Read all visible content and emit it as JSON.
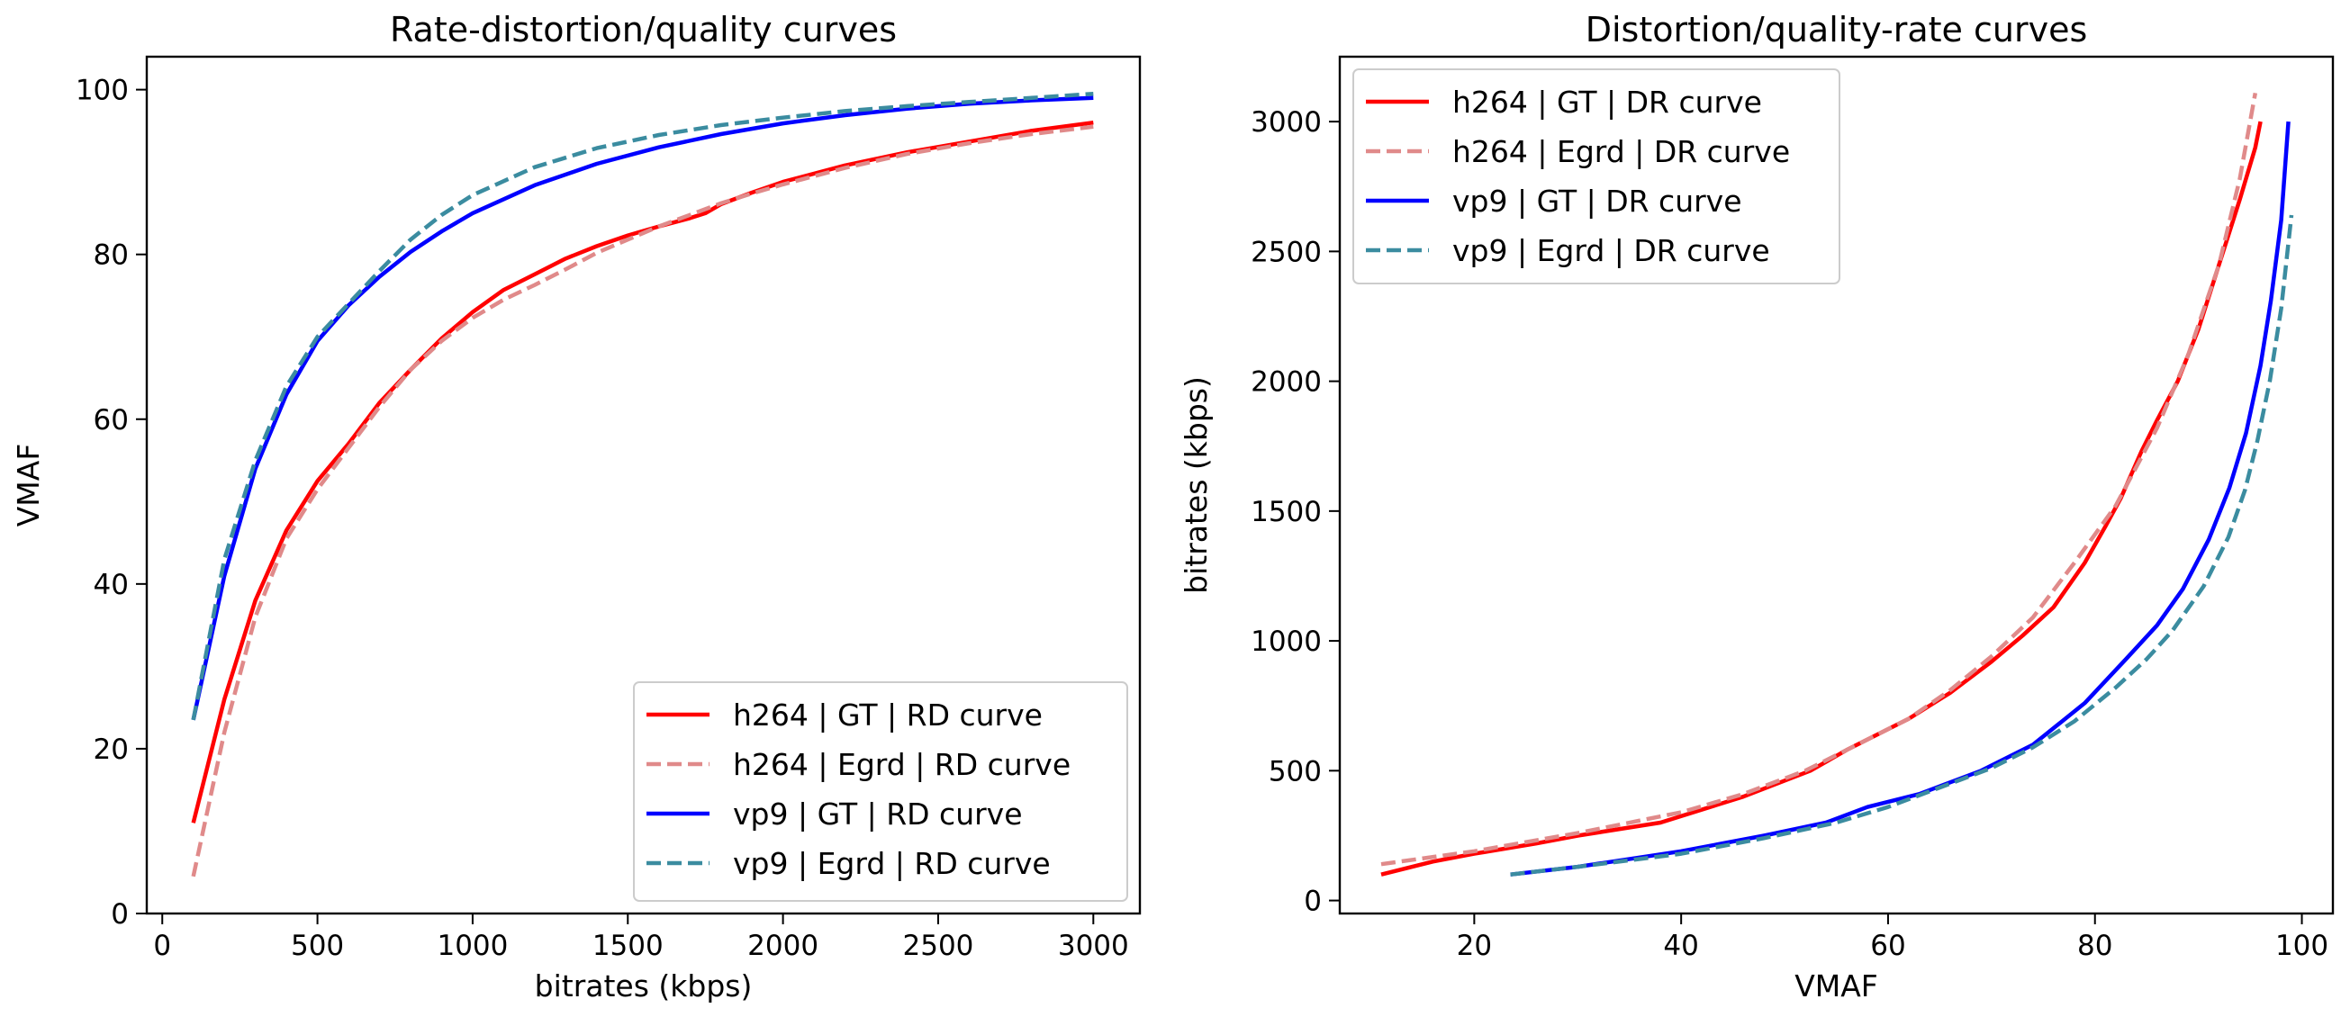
{
  "chart_data": [
    {
      "type": "line",
      "title": "Rate-distortion/quality curves",
      "xlabel": "bitrates (kbps)",
      "ylabel": "VMAF",
      "xlim": [
        -50,
        3150
      ],
      "ylim": [
        0,
        104
      ],
      "xticks": [
        0,
        500,
        1000,
        1500,
        2000,
        2500,
        3000
      ],
      "yticks": [
        0,
        20,
        40,
        60,
        80,
        100
      ],
      "grid": false,
      "legend_position": "lower-right",
      "series": [
        {
          "name": "h264 | GT | RD curve",
          "color": "#ff0000",
          "dash": "solid",
          "x": [
            100,
            200,
            300,
            400,
            500,
            600,
            700,
            800,
            900,
            1000,
            1100,
            1200,
            1300,
            1400,
            1500,
            1600,
            1700,
            1750,
            1800,
            1900,
            2000,
            2200,
            2400,
            2600,
            2800,
            3000
          ],
          "y": [
            11,
            26,
            38,
            46.5,
            52.5,
            57,
            62,
            66,
            69.8,
            73,
            75.7,
            77.6,
            79.5,
            81,
            82.3,
            83.4,
            84.4,
            85,
            86.1,
            87.5,
            88.8,
            90.8,
            92.4,
            93.7,
            95,
            96
          ]
        },
        {
          "name": "h264 | Egrd | RD curve",
          "color": "#e08a8a",
          "dash": "dashed",
          "x": [
            100,
            200,
            300,
            400,
            500,
            600,
            700,
            800,
            900,
            1000,
            1100,
            1200,
            1300,
            1400,
            1500,
            1600,
            1700,
            1800,
            1900,
            2000,
            2200,
            2400,
            2600,
            2800,
            3000
          ],
          "y": [
            4.5,
            22,
            36,
            45.5,
            51.5,
            56.5,
            61.5,
            66,
            69.5,
            72.3,
            74.5,
            76.3,
            78.2,
            80.2,
            81.8,
            83.4,
            84.8,
            86.2,
            87.4,
            88.5,
            90.5,
            92.2,
            93.5,
            94.6,
            95.5
          ]
        },
        {
          "name": "vp9 | GT | RD curve",
          "color": "#0000ff",
          "dash": "solid",
          "x": [
            100,
            200,
            300,
            400,
            500,
            600,
            700,
            800,
            900,
            1000,
            1200,
            1400,
            1600,
            1800,
            2000,
            2200,
            2400,
            2600,
            2800,
            3000
          ],
          "y": [
            23.5,
            41,
            54,
            63,
            69.5,
            73.8,
            77.3,
            80.3,
            82.8,
            85,
            88.4,
            91,
            93,
            94.6,
            95.9,
            96.9,
            97.7,
            98.3,
            98.7,
            99
          ]
        },
        {
          "name": "vp9 | Egrd | RD curve",
          "color": "#3b8ca0",
          "dash": "dashed",
          "x": [
            100,
            200,
            300,
            400,
            500,
            600,
            700,
            800,
            900,
            1000,
            1200,
            1400,
            1600,
            1800,
            2000,
            2200,
            2400,
            2600,
            2800,
            3000
          ],
          "y": [
            23.5,
            43,
            55,
            64,
            70,
            74,
            78,
            81.8,
            84.8,
            87.2,
            90.6,
            92.9,
            94.5,
            95.7,
            96.6,
            97.4,
            98,
            98.5,
            99,
            99.5
          ]
        }
      ]
    },
    {
      "type": "line",
      "title": "Distortion/quality-rate curves",
      "xlabel": "VMAF",
      "ylabel": "bitrates (kbps)",
      "xlim": [
        7,
        103
      ],
      "ylim": [
        -50,
        3250
      ],
      "xticks": [
        20,
        40,
        60,
        80,
        100
      ],
      "yticks": [
        0,
        500,
        1000,
        1500,
        2000,
        2500,
        3000
      ],
      "grid": false,
      "legend_position": "upper-left",
      "series": [
        {
          "name": "h264 | GT | DR curve",
          "color": "#ff0000",
          "dash": "solid",
          "x": [
            11,
            16,
            20,
            26,
            30,
            38,
            46,
            52.5,
            56,
            62,
            66,
            70,
            73,
            76,
            79,
            81,
            82.5,
            84.5,
            86,
            88,
            90,
            92,
            94,
            95.5,
            96
          ],
          "y": [
            100,
            150,
            180,
            220,
            250,
            300,
            400,
            500,
            580,
            700,
            800,
            920,
            1020,
            1130,
            1300,
            1440,
            1550,
            1730,
            1850,
            2000,
            2200,
            2450,
            2700,
            2900,
            3000
          ]
        },
        {
          "name": "h264 | Egrd | DR curve",
          "color": "#e08a8a",
          "dash": "dashed",
          "x": [
            11,
            20,
            30,
            40,
            46,
            52,
            56,
            62,
            66,
            70,
            74,
            78,
            82,
            86,
            89,
            92,
            94,
            95.5
          ],
          "y": [
            140,
            190,
            260,
            340,
            410,
            500,
            580,
            700,
            810,
            940,
            1090,
            1300,
            1520,
            1820,
            2100,
            2450,
            2780,
            3110
          ]
        },
        {
          "name": "vp9 | GT | DR curve",
          "color": "#0000ff",
          "dash": "solid",
          "x": [
            23.5,
            30,
            40,
            48,
            54,
            58,
            63,
            69,
            74,
            79,
            83,
            86,
            88.5,
            91,
            93,
            94.6,
            96,
            97,
            98,
            98.7
          ],
          "y": [
            100,
            130,
            190,
            250,
            300,
            360,
            410,
            500,
            600,
            760,
            930,
            1060,
            1200,
            1390,
            1590,
            1800,
            2060,
            2310,
            2620,
            3000
          ]
        },
        {
          "name": "vp9 | Egrd | DR curve",
          "color": "#3b8ca0",
          "dash": "dashed",
          "x": [
            23.5,
            30,
            40,
            48,
            55,
            60,
            64,
            70,
            74,
            78,
            82,
            85,
            87.5,
            90.5,
            92.9,
            94.5,
            95.7,
            96.9,
            98,
            99
          ],
          "y": [
            100,
            130,
            180,
            240,
            300,
            360,
            420,
            510,
            590,
            690,
            820,
            930,
            1040,
            1210,
            1400,
            1580,
            1770,
            2000,
            2280,
            2640
          ]
        }
      ]
    }
  ]
}
